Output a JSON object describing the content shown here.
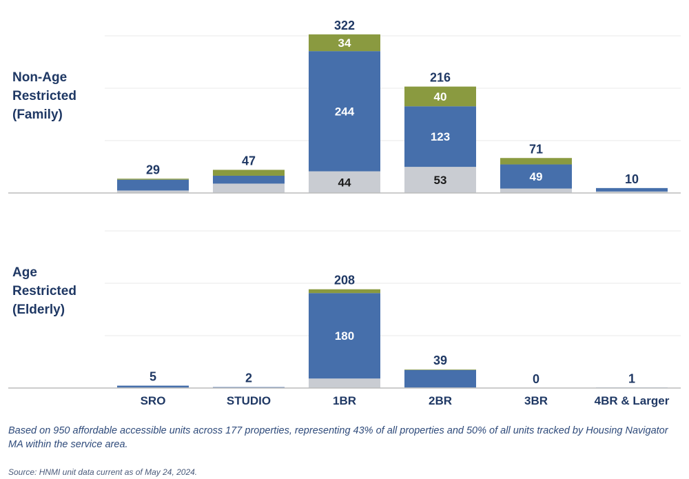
{
  "colors": {
    "segment_gray": "#c9ccd2",
    "segment_blue": "#466fab",
    "segment_olive": "#8a9a40",
    "text_navy": "#1f3864",
    "gridline": "#e8e8e8",
    "baseline": "#bbbbbb"
  },
  "chart_data": {
    "type": "bar",
    "stacked": true,
    "categories": [
      "SRO",
      "STUDIO",
      "1BR",
      "2BR",
      "3BR",
      "4BR & Larger"
    ],
    "panels": [
      {
        "label_lines": [
          "Non-Age",
          "Restricted",
          "(Family)"
        ],
        "ylim": [
          0,
          340
        ],
        "grid": true,
        "totals": [
          29,
          47,
          322,
          216,
          71,
          10
        ],
        "segments": [
          {
            "values": [
              5,
              19,
              44,
              53,
              9,
              3
            ],
            "labels": [
              "",
              "",
              "44",
              "53",
              "",
              ""
            ],
            "color": "#c9ccd2"
          },
          {
            "values": [
              22,
              16,
              244,
              123,
              49,
              7
            ],
            "labels": [
              "",
              "",
              "244",
              "123",
              "49",
              ""
            ],
            "color": "#466fab"
          },
          {
            "values": [
              2,
              12,
              34,
              40,
              13,
              0
            ],
            "labels": [
              "",
              "",
              "34",
              "40",
              "",
              ""
            ],
            "color": "#8a9a40"
          }
        ]
      },
      {
        "label_lines": [
          "Age",
          "Restricted",
          "(Elderly)"
        ],
        "ylim": [
          0,
          225
        ],
        "grid": true,
        "totals": [
          5,
          2,
          208,
          39,
          0,
          1
        ],
        "segments": [
          {
            "values": [
              1,
              0,
              20,
              1,
              0,
              0
            ],
            "labels": [
              "",
              "",
              "",
              "",
              "",
              ""
            ],
            "color": "#c9ccd2"
          },
          {
            "values": [
              4,
              2,
              180,
              37,
              0,
              1
            ],
            "labels": [
              "",
              "",
              "180",
              "",
              "",
              ""
            ],
            "color": "#466fab"
          },
          {
            "values": [
              0,
              0,
              8,
              1,
              0,
              0
            ],
            "labels": [
              "",
              "",
              "",
              "",
              "",
              ""
            ],
            "color": "#8a9a40"
          }
        ]
      }
    ]
  },
  "footnote": "Based on 950 affordable accessible units across 177 properties, representing 43% of all properties and 50% of all units tracked by Housing Navigator MA within the service area.",
  "source": "Source: HNMI unit data current as of May 24, 2024."
}
